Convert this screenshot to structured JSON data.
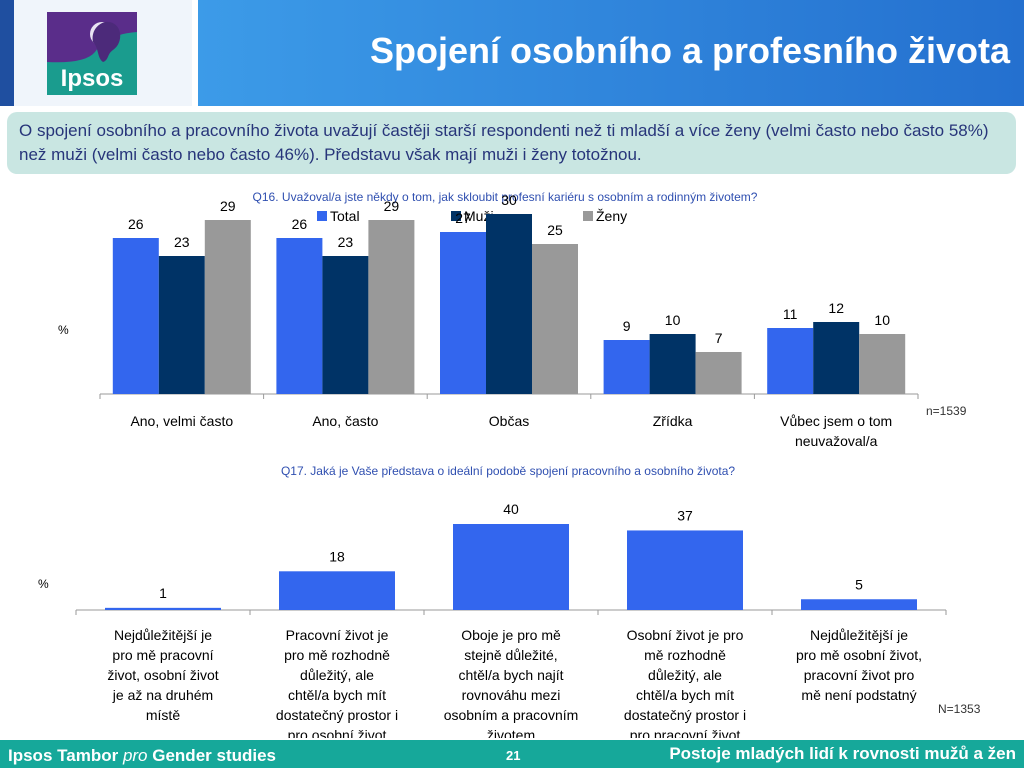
{
  "header": {
    "title": "Spojení osobního a profesního života",
    "logo_text": "Ipsos"
  },
  "callout": {
    "text": "O spojení osobního a pracovního života uvažují častěji starší respondenti než ti mladší a více ženy (velmi často nebo často 58%) než muži (velmi často nebo často 46%). Představu však mají muži i ženy totožnou."
  },
  "colors": {
    "total": "#3366ee",
    "muzi": "#003366",
    "zeny": "#999999",
    "question": "#2f4fb0",
    "footer": "#16a89a"
  },
  "chart_data": [
    {
      "type": "bar",
      "title": "Q16. Uvažoval/a jste někdy o tom, jak skloubit profesní kariéru s osobním a rodinným životem?",
      "ylabel": "%",
      "note": "n=1539",
      "legend": "top",
      "categories": [
        "Ano, velmi často",
        "Ano, často",
        "Občas",
        "Zřídka",
        "Vůbec jsem o tom neuvažoval/a"
      ],
      "series": [
        {
          "name": "Total",
          "values": [
            26,
            26,
            27,
            9,
            11
          ]
        },
        {
          "name": "Muži",
          "values": [
            23,
            23,
            30,
            10,
            12
          ]
        },
        {
          "name": "Ženy",
          "values": [
            29,
            29,
            25,
            7,
            10
          ]
        }
      ],
      "ylim": [
        0,
        32
      ]
    },
    {
      "type": "bar",
      "title": "Q17. Jaká je Vaše představa o ideální podobě spojení pracovního a osobního života?",
      "ylabel": "%",
      "note": "N=1353",
      "categories": [
        "Nejdůležitější je pro mě pracovní život, osobní život je až na druhém místě",
        "Pracovní život je pro mě rozhodně důležitý, ale chtěl/a bych mít dostatečný prostor i pro osobní život",
        "Oboje je pro mě stejně důležité, chtěl/a bych najít rovnováhu mezi osobním a pracovním životem",
        "Osobní život je pro mě rozhodně důležitý, ale chtěl/a bych mít dostatečný prostor i pro pracovní život",
        "Nejdůležitější je pro mě osobní život, pracovní život pro mě není podstatný"
      ],
      "values": [
        1,
        18,
        40,
        37,
        5
      ],
      "ylim": [
        0,
        42
      ]
    }
  ],
  "footer": {
    "left_brand": "Ipsos Tambor",
    "left_pro": "pro",
    "left_rest": "Gender studies",
    "page": "21",
    "right": "Postoje mladých lidí k rovnosti mužů a žen"
  }
}
